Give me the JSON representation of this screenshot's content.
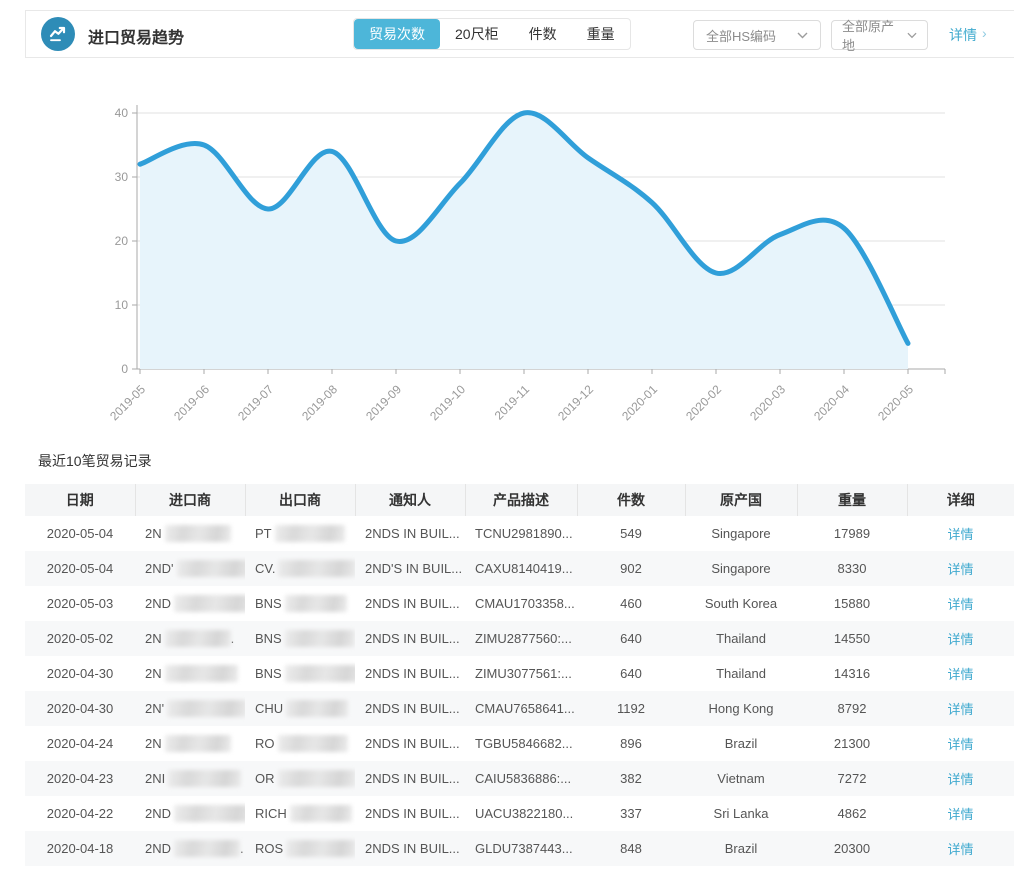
{
  "header": {
    "title": "进口贸易趋势",
    "tabs": [
      {
        "label": "贸易次数",
        "active": true
      },
      {
        "label": "20尺柜",
        "active": false
      },
      {
        "label": "件数",
        "active": false
      },
      {
        "label": "重量",
        "active": false
      }
    ],
    "filters": [
      {
        "label": "全部HS编码"
      },
      {
        "label": "全部原产地"
      }
    ],
    "detail_link": "详情",
    "detail_chevron": "›"
  },
  "colors": {
    "accent_link": "#41abcf",
    "tab_active_bg": "#4db6d9",
    "icon_bg": "#2e8cb7",
    "chart_line": "#309fd9",
    "chart_area": "#e7f4fb",
    "grid": "#e0e0e0",
    "axis": "#aaaaaa",
    "axis_label": "#999999",
    "table_header_bg": "#f5f6f7",
    "row_alt_bg": "#f7f8f9"
  },
  "chart_data": {
    "type": "area",
    "smooth": true,
    "grid": true,
    "legend": false,
    "title": "",
    "xlabel": "",
    "ylabel": "",
    "x": [
      "2019-05",
      "2019-06",
      "2019-07",
      "2019-08",
      "2019-09",
      "2019-10",
      "2019-11",
      "2019-12",
      "2020-01",
      "2020-02",
      "2020-03",
      "2020-04",
      "2020-05"
    ],
    "values": [
      32,
      35,
      25,
      34,
      20,
      29,
      40,
      33,
      26,
      15,
      21,
      22,
      4
    ],
    "series_name": "贸易次数",
    "ylim": [
      0,
      40
    ],
    "yticks": [
      0,
      10,
      20,
      30,
      40
    ]
  },
  "table": {
    "section_title": "最近10笔贸易记录",
    "columns": [
      "日期",
      "进口商",
      "出口商",
      "通知人",
      "产品描述",
      "件数",
      "原产国",
      "重量",
      "详细"
    ],
    "detail_label": "详情",
    "rows": [
      {
        "date": "2020-05-04",
        "importer_prefix": "2N",
        "importer_suffix": "",
        "exporter_prefix": "PT",
        "notify": "2NDS IN BUIL...",
        "product": "TCNU2981890...",
        "qty": "549",
        "origin": "Singapore",
        "weight": "17989"
      },
      {
        "date": "2020-05-04",
        "importer_prefix": "2ND'",
        "importer_suffix": "",
        "exporter_prefix": "CV.",
        "notify": "2ND'S IN BUIL...",
        "product": "CAXU8140419...",
        "qty": "902",
        "origin": "Singapore",
        "weight": "8330"
      },
      {
        "date": "2020-05-03",
        "importer_prefix": "2ND",
        "importer_suffix": "",
        "exporter_prefix": "BNS",
        "notify": "2NDS IN BUIL...",
        "product": "CMAU1703358...",
        "qty": "460",
        "origin": "South Korea",
        "weight": "15880"
      },
      {
        "date": "2020-05-02",
        "importer_prefix": "2N",
        "importer_suffix": ".",
        "exporter_prefix": "BNS",
        "notify": "2NDS IN BUIL...",
        "product": "ZIMU2877560:...",
        "qty": "640",
        "origin": "Thailand",
        "weight": "14550"
      },
      {
        "date": "2020-04-30",
        "importer_prefix": "2N",
        "importer_suffix": "",
        "exporter_prefix": "BNS",
        "notify": "2NDS IN BUIL...",
        "product": "ZIMU3077561:...",
        "qty": "640",
        "origin": "Thailand",
        "weight": "14316"
      },
      {
        "date": "2020-04-30",
        "importer_prefix": "2N'",
        "importer_suffix": "",
        "exporter_prefix": "CHU",
        "notify": "2NDS IN BUIL...",
        "product": "CMAU7658641...",
        "qty": "1192",
        "origin": "Hong Kong",
        "weight": "8792"
      },
      {
        "date": "2020-04-24",
        "importer_prefix": "2N",
        "importer_suffix": "",
        "exporter_prefix": "RO",
        "notify": "2NDS IN BUIL...",
        "product": "TGBU5846682...",
        "qty": "896",
        "origin": "Brazil",
        "weight": "21300"
      },
      {
        "date": "2020-04-23",
        "importer_prefix": "2NI",
        "importer_suffix": "",
        "exporter_prefix": "OR",
        "notify": "2NDS IN BUIL...",
        "product": "CAIU5836886:...",
        "qty": "382",
        "origin": "Vietnam",
        "weight": "7272"
      },
      {
        "date": "2020-04-22",
        "importer_prefix": "2ND",
        "importer_suffix": "",
        "exporter_prefix": "RICH",
        "notify": "2NDS IN BUIL...",
        "product": "UACU3822180...",
        "qty": "337",
        "origin": "Sri Lanka",
        "weight": "4862"
      },
      {
        "date": "2020-04-18",
        "importer_prefix": "2ND",
        "importer_suffix": ".",
        "exporter_prefix": "ROS",
        "notify": "2NDS IN BUIL...",
        "product": "GLDU7387443...",
        "qty": "848",
        "origin": "Brazil",
        "weight": "20300"
      }
    ]
  }
}
